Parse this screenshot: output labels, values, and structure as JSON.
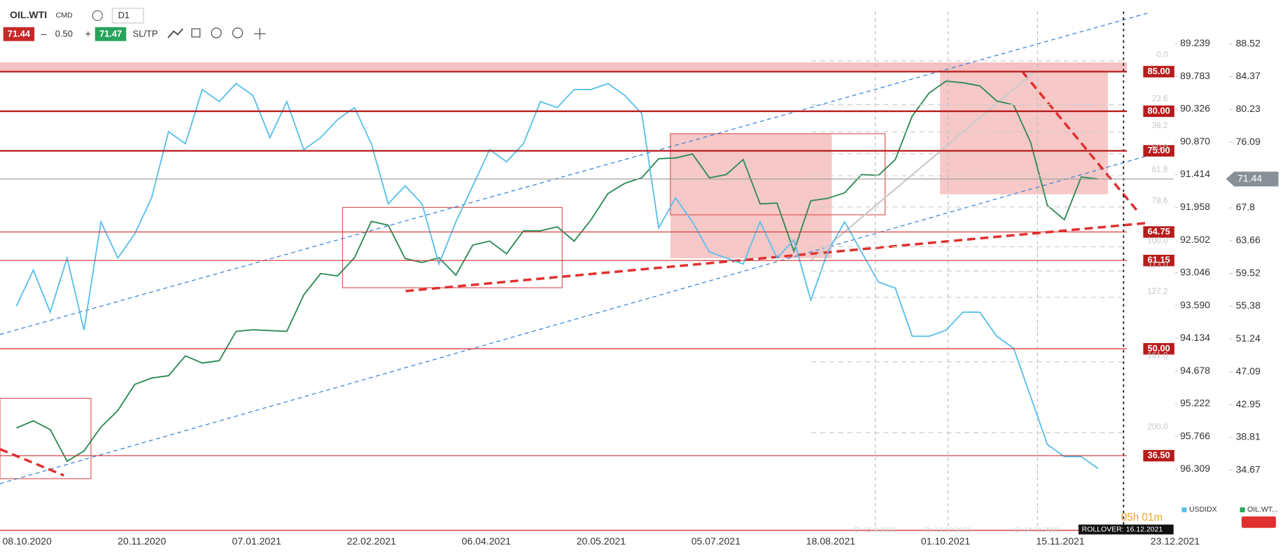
{
  "toolbar": {
    "symbol": "OIL.WTI",
    "market": "CMD",
    "timeframe": "D1",
    "sell": "71.44",
    "volume": "0.50",
    "buy": "71.47",
    "sltp": "SL/TP"
  },
  "chart_data": {
    "type": "line",
    "x_tick_labels": [
      "08.10.2020",
      "20.11.2020",
      "07.01.2021",
      "22.02.2021",
      "06.04.2021",
      "20.05.2021",
      "05.07.2021",
      "18.08.2021",
      "01.10.2021",
      "15.11.2021",
      "23.12.2021"
    ],
    "series": [
      {
        "name": "OIL.WT...",
        "color": "#2e8b57",
        "values": [
          40,
          40.9,
          39.8,
          35.8,
          37.1,
          40.1,
          42.2,
          45.5,
          46.3,
          46.6,
          49.1,
          48.2,
          48.5,
          52.2,
          52.4,
          52.3,
          52.2,
          56.8,
          59.5,
          59.2,
          61.5,
          66.1,
          65.6,
          61.4,
          60.9,
          61.5,
          59.3,
          63.1,
          63.6,
          62.0,
          64.9,
          64.9,
          65.4,
          63.6,
          66.3,
          69.6,
          70.9,
          71.6,
          74.0,
          74.1,
          74.6,
          71.6,
          72.0,
          73.9,
          68.3,
          68.4,
          62.3,
          68.7,
          69.0,
          69.7,
          72.0,
          71.9,
          73.9,
          79.4,
          82.3,
          83.8,
          83.6,
          83.2,
          81.3,
          80.8,
          76.1,
          68.1,
          66.3,
          71.7,
          71.44
        ]
      },
      {
        "name": "USDIDX",
        "color": "#5bc0eb",
        "axis": "y2",
        "values": [
          93.6,
          93.0,
          93.7,
          92.8,
          94.0,
          92.2,
          92.8,
          92.4,
          91.8,
          90.7,
          90.9,
          90.0,
          90.2,
          89.9,
          90.1,
          90.8,
          90.2,
          91.0,
          90.8,
          90.5,
          90.3,
          90.9,
          91.9,
          91.6,
          91.9,
          92.9,
          92.2,
          91.6,
          91.0,
          91.2,
          90.9,
          90.2,
          90.3,
          90.0,
          90.0,
          89.9,
          90.1,
          90.4,
          92.3,
          91.8,
          92.2,
          92.7,
          92.8,
          92.9,
          92.2,
          92.8,
          92.5,
          93.5,
          92.7,
          92.2,
          92.7,
          93.2,
          93.3,
          94.1,
          94.1,
          94.0,
          93.7,
          93.7,
          94.1,
          94.3,
          95.1,
          95.9,
          96.1,
          96.1,
          96.3
        ]
      }
    ],
    "ylim": [
      27.8,
      93.0
    ],
    "yticks": [
      88.52,
      84.37,
      80.23,
      76.09,
      67.8,
      63.66,
      59.52,
      55.38,
      51.24,
      47.09,
      42.95,
      38.81,
      34.67
    ],
    "y2lim": [
      97.23,
      88.65
    ],
    "y2ticks": [
      89.239,
      89.783,
      90.326,
      {
        "value": 90.87,
        "label": "90.870"
      },
      91.414,
      91.958,
      92.502,
      93.046,
      {
        "value": 93.59,
        "label": "93.590"
      },
      94.134,
      94.678,
      95.222,
      95.766,
      96.309
    ],
    "current_price": 71.44,
    "levels": [
      {
        "value": 85,
        "label": "85.00"
      },
      {
        "value": 80,
        "label": "80.00"
      },
      {
        "value": 75,
        "label": "75.00"
      },
      64.75,
      61.15,
      {
        "value": 50,
        "label": "50.00"
      },
      {
        "value": 36.5,
        "label": "36.50"
      }
    ],
    "fib_levels": [
      {
        "value": 0,
        "label": "0.0"
      },
      23.6,
      38.2,
      {
        "value": 50,
        "label": "50.0"
      },
      61.8,
      78.6,
      {
        "value": 100,
        "label": "100.0"
      },
      {
        "value": 113,
        "label": "113.0"
      },
      127.2,
      161.8,
      {
        "value": 200,
        "label": "200.0"
      }
    ],
    "markers": [
      "D: 15.9.2021",
      "D: 13.10.2021",
      "D: 14.11.2021"
    ]
  },
  "footer": {
    "countdown": "05h 01m",
    "rollover": "ROLLOVER: 16.12.2021"
  }
}
